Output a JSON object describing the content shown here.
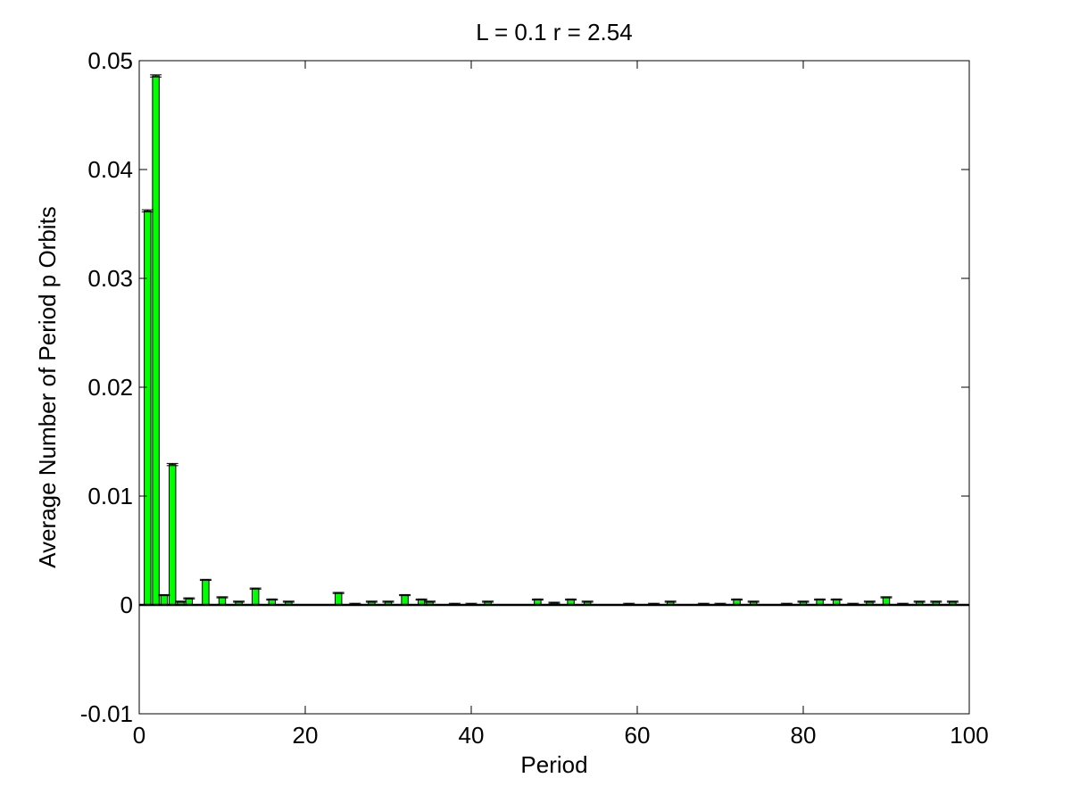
{
  "chart_data": {
    "type": "bar",
    "title": "L = 0.1 r = 2.54",
    "xlabel": "Period",
    "ylabel": "Average Number of Period p Orbits",
    "xlim": [
      0,
      100
    ],
    "ylim": [
      -0.01,
      0.05
    ],
    "xticks": [
      0,
      20,
      40,
      60,
      80,
      100
    ],
    "xtick_labels": [
      "0",
      "20",
      "40",
      "60",
      "80",
      "100"
    ],
    "yticks": [
      -0.01,
      0,
      0.01,
      0.02,
      0.03,
      0.04,
      0.05
    ],
    "ytick_labels": [
      "-0.01",
      "0",
      "0.01",
      "0.02",
      "0.03",
      "0.04",
      "0.05"
    ],
    "grid": false,
    "error_bars": true,
    "periods": [
      1,
      2,
      3,
      4,
      5,
      6,
      7,
      8,
      9,
      10,
      11,
      12,
      13,
      14,
      15,
      16,
      17,
      18,
      19,
      20,
      21,
      22,
      23,
      24,
      25,
      26,
      27,
      28,
      29,
      30,
      31,
      32,
      33,
      34,
      35,
      36,
      37,
      38,
      39,
      40,
      41,
      42,
      43,
      44,
      45,
      46,
      47,
      48,
      49,
      50,
      51,
      52,
      53,
      54,
      55,
      56,
      57,
      58,
      59,
      60,
      61,
      62,
      63,
      64,
      65,
      66,
      67,
      68,
      69,
      70,
      71,
      72,
      73,
      74,
      75,
      76,
      77,
      78,
      79,
      80,
      81,
      82,
      83,
      84,
      85,
      86,
      87,
      88,
      89,
      90,
      91,
      92,
      93,
      94,
      95,
      96,
      97,
      98,
      99,
      100
    ],
    "values": [
      0.0362,
      0.0486,
      0.0009,
      0.0129,
      0.0003,
      0.0006,
      0.0,
      0.0023,
      0.0,
      0.0007,
      0.0,
      0.0003,
      0.0,
      0.0015,
      0.0,
      0.0005,
      0.0,
      0.0003,
      0.0,
      0.0,
      0.0,
      0.0,
      0.0,
      0.0011,
      0.0,
      0.0001,
      0.0,
      0.0003,
      0.0,
      0.0003,
      0.0,
      0.0009,
      0.0,
      0.0005,
      0.0003,
      0.0,
      0.0,
      0.0001,
      0.0,
      0.0001,
      0.0,
      0.0003,
      0.0,
      0.0,
      0.0,
      0.0,
      0.0,
      0.0005,
      0.0,
      0.0002,
      0.0,
      0.0005,
      0.0,
      0.0003,
      0.0,
      0.0,
      0.0,
      0.0,
      0.0001,
      0.0,
      0.0,
      0.0001,
      0.0,
      0.0003,
      0.0,
      0.0,
      0.0,
      0.0001,
      0.0,
      0.0001,
      0.0,
      0.0005,
      0.0,
      0.0003,
      0.0,
      0.0,
      0.0,
      0.0001,
      0.0,
      0.0003,
      0.0,
      0.0005,
      0.0,
      0.0005,
      0.0,
      0.0001,
      0.0,
      0.0003,
      0.0,
      0.0007,
      0.0,
      0.0001,
      0.0,
      0.0003,
      0.0,
      0.0003,
      0.0,
      0.0003,
      0.0,
      0.0
    ],
    "errors": [
      0.0001,
      0.0001,
      5e-05,
      0.0001,
      5e-05,
      5e-05,
      0.0,
      5e-05,
      0.0,
      5e-05,
      0.0,
      5e-05,
      0.0,
      5e-05,
      0.0,
      5e-05,
      0.0,
      5e-05,
      0.0,
      0.0,
      0.0,
      0.0,
      0.0,
      5e-05,
      0.0,
      5e-05,
      0.0,
      5e-05,
      0.0,
      5e-05,
      0.0,
      5e-05,
      0.0,
      5e-05,
      5e-05,
      0.0,
      0.0,
      5e-05,
      0.0,
      5e-05,
      0.0,
      5e-05,
      0.0,
      0.0,
      0.0,
      0.0,
      0.0,
      5e-05,
      0.0,
      5e-05,
      0.0,
      5e-05,
      0.0,
      5e-05,
      0.0,
      0.0,
      0.0,
      0.0,
      5e-05,
      0.0,
      0.0,
      5e-05,
      0.0,
      5e-05,
      0.0,
      0.0,
      0.0,
      5e-05,
      0.0,
      5e-05,
      0.0,
      5e-05,
      0.0,
      5e-05,
      0.0,
      0.0,
      0.0,
      5e-05,
      0.0,
      5e-05,
      0.0,
      5e-05,
      0.0,
      5e-05,
      0.0,
      5e-05,
      0.0,
      5e-05,
      0.0,
      5e-05,
      0.0,
      5e-05,
      0.0,
      5e-05,
      0.0,
      5e-05,
      0.0,
      5e-05,
      0.0,
      0.0
    ],
    "bar_color": "#00ff00",
    "edge_color": "#000000",
    "zero_line_color": "#000000"
  }
}
